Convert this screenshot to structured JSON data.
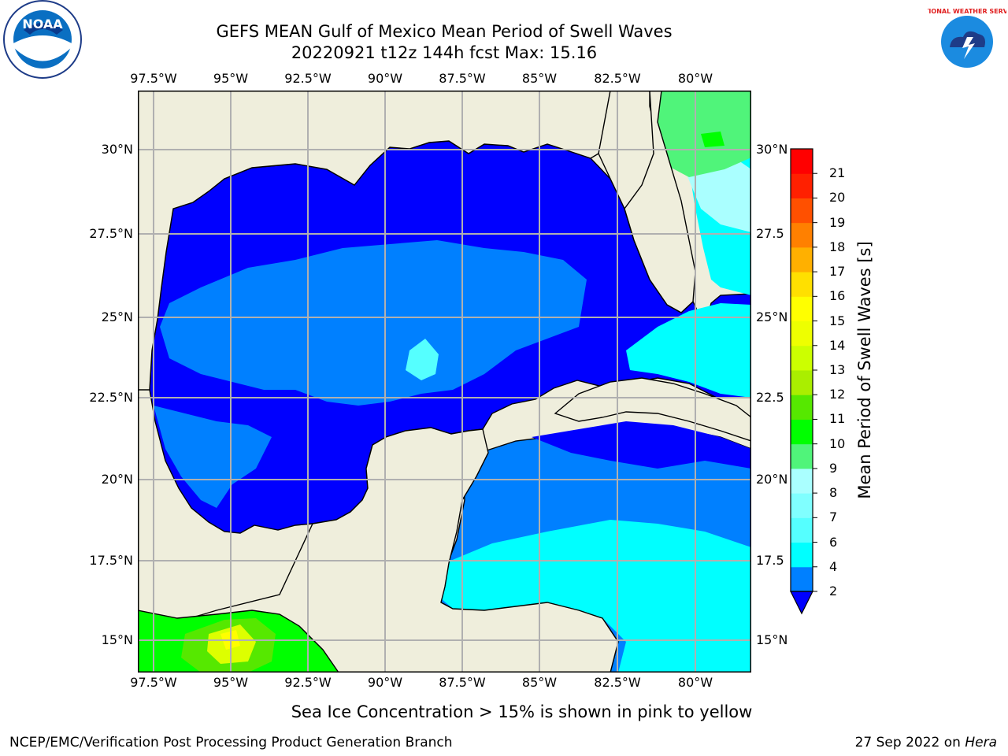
{
  "title_line1": "GEFS MEAN Gulf of Mexico Mean Period of Swell Waves",
  "title_line2": "20220921 t12z 144h fcst   Max: 15.16",
  "map": {
    "lon_ticks_top": [
      "97.5°W",
      "95°W",
      "92.5°W",
      "90°W",
      "87.5°W",
      "85°W",
      "82.5°W",
      "80°W"
    ],
    "lon_ticks_bottom": [
      "97.5°W",
      "95°W",
      "92.5°W",
      "90°W",
      "87.5°W",
      "85°W",
      "82.5°W",
      "80°W"
    ],
    "lat_ticks_left": [
      "30°N",
      "27.5°N",
      "25°N",
      "22.5°N",
      "20°N",
      "17.5°N",
      "15°N"
    ],
    "lat_ticks_right": [
      "30°N",
      "27.5",
      "25°N",
      "22.5",
      "20°N",
      "17.5",
      "15°N"
    ],
    "colors": {
      "land": "#efeedc",
      "blue_2_4": "#0000ff",
      "blue_4_6": "#0080ff",
      "cyan_6_8": "#00ffff",
      "cyan_8_9": "#55ffff",
      "green_9_10": "#50f47a",
      "green_10_11": "#00ff00",
      "green_11_12": "#56e800",
      "yellow_13_15": "#ddff00",
      "yellow_15_16": "#ffff00",
      "grid": "#b0b0b0"
    }
  },
  "colorbar": {
    "label": "Mean Period of Swell Waves [s]",
    "ticks": [
      "2",
      "4",
      "6",
      "7",
      "8",
      "9",
      "10",
      "11",
      "12",
      "13",
      "14",
      "15",
      "16",
      "17",
      "18",
      "19",
      "20",
      "21"
    ],
    "colors": [
      "#0080ff",
      "#00ffff",
      "#55ffff",
      "#80ffff",
      "#aaffff",
      "#50f47a",
      "#00ff00",
      "#56e800",
      "#aaee00",
      "#ccff00",
      "#eeff00",
      "#ffff00",
      "#ffe000",
      "#ffb000",
      "#ff8000",
      "#ff5000",
      "#ff2000",
      "#ff0000"
    ],
    "extend_color": "#0000ff"
  },
  "note": "Sea Ice Concentration > 15% is shown in pink to yellow",
  "footer_left": "NCEP/EMC/Verification Post Processing Product Generation Branch",
  "footer_right_prefix": "27 Sep 2022 on",
  "footer_right_machine": "Hera",
  "logos": {
    "left_text": "NOAA",
    "right_text": "NATIONAL WEATHER SERVICE"
  }
}
